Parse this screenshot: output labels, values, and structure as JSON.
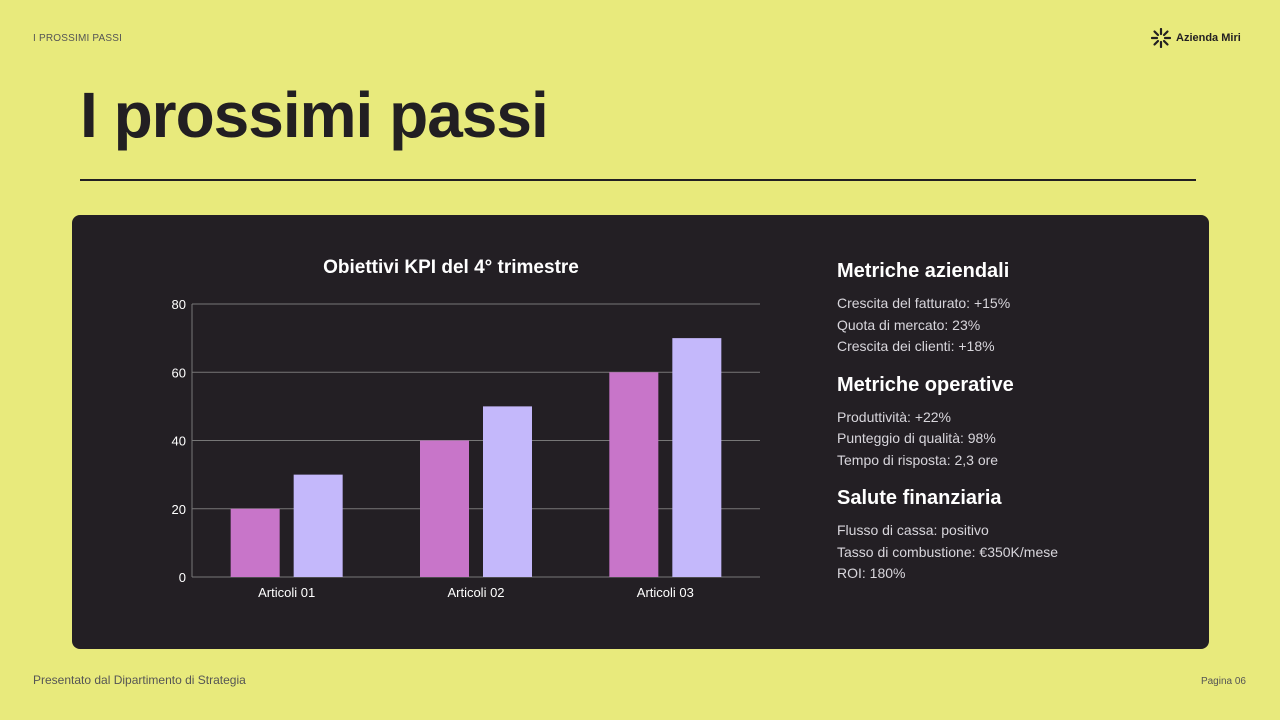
{
  "header": {
    "section_label": "I PROSSIMI PASSI",
    "brand": "Azienda Miri",
    "title": "I prossimi passi"
  },
  "chart_data": {
    "type": "bar",
    "title": "Obiettivi KPI del 4° trimestre",
    "categories": [
      "Articoli 01",
      "Articoli 02",
      "Articoli 03"
    ],
    "series": [
      {
        "values": [
          20,
          40,
          60
        ],
        "color": "#c875c9"
      },
      {
        "values": [
          30,
          50,
          70
        ],
        "color": "#c4b8fb"
      }
    ],
    "ylim": [
      0,
      80
    ],
    "yticks": [
      0,
      20,
      40,
      60,
      80
    ],
    "grid": true,
    "xlabel": "",
    "ylabel": ""
  },
  "metrics": [
    {
      "title": "Metriche aziendali",
      "items": [
        "Crescita del fatturato: +15%",
        "Quota di mercato: 23%",
        "Crescita dei clienti: +18%"
      ]
    },
    {
      "title": "Metriche operative",
      "items": [
        "Produttività: +22%",
        "Punteggio di qualità: 98%",
        "Tempo di risposta: 2,3 ore"
      ]
    },
    {
      "title": "Salute finanziaria",
      "items": [
        "Flusso di cassa: positivo",
        "Tasso di combustione: €350K/mese",
        "ROI: 180%"
      ]
    }
  ],
  "footer": {
    "presenter": "Presentato dal Dipartimento di Strategia",
    "page": "Pagina 06"
  }
}
